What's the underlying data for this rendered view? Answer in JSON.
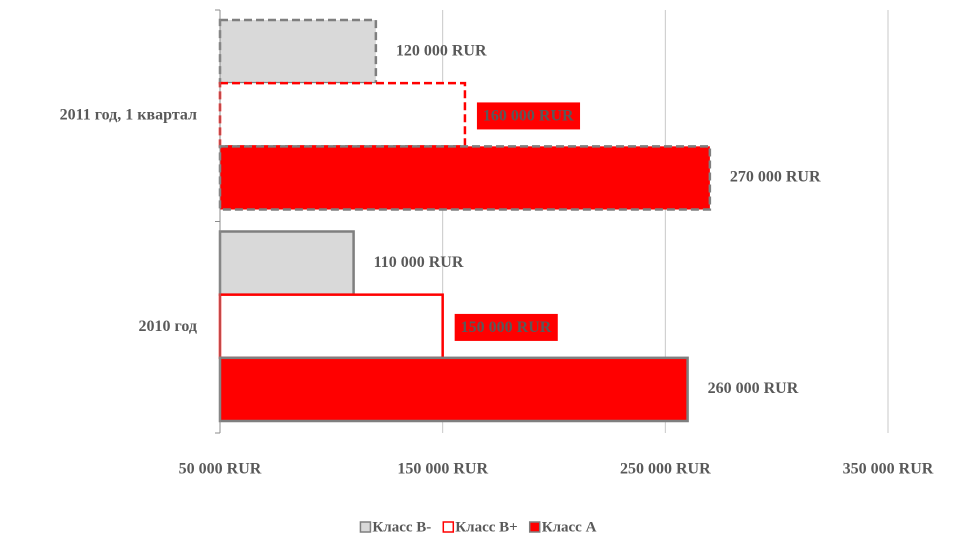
{
  "chart_data": {
    "type": "bar",
    "orientation": "horizontal",
    "categories": [
      "2011 год, 1 квартал",
      "2010 год"
    ],
    "dashed": [
      true,
      false
    ],
    "series": [
      {
        "name": "Класс B-",
        "color": "#d9d9d9",
        "border": "#7f7f7f",
        "label_color": "#7f7f7f",
        "values": [
          120000,
          110000
        ],
        "value_labels": [
          "120 000 RUR",
          "110 000 RUR"
        ]
      },
      {
        "name": "Класс B+",
        "color": "#ffffff",
        "border": "#ff0000",
        "label_color": "#ffffff",
        "label_box": "#ff0000",
        "values": [
          160000,
          150000
        ],
        "value_labels": [
          "160 000 RUR",
          "150 000 RUR"
        ]
      },
      {
        "name": "Класс A",
        "color": "#ff0000",
        "border": "#7f7f7f",
        "label_color": "#ff0000",
        "values": [
          270000,
          260000
        ],
        "value_labels": [
          "270 000 RUR",
          "260 000 RUR"
        ]
      }
    ],
    "xlim": [
      50000,
      350000
    ],
    "xticks": [
      {
        "value": 50000,
        "label": "50 000 RUR"
      },
      {
        "value": 150000,
        "label": "150 000 RUR"
      },
      {
        "value": 250000,
        "label": "250 000 RUR"
      },
      {
        "value": 350000,
        "label": "350 000 RUR"
      }
    ],
    "grid": true,
    "legend": "bottom"
  }
}
